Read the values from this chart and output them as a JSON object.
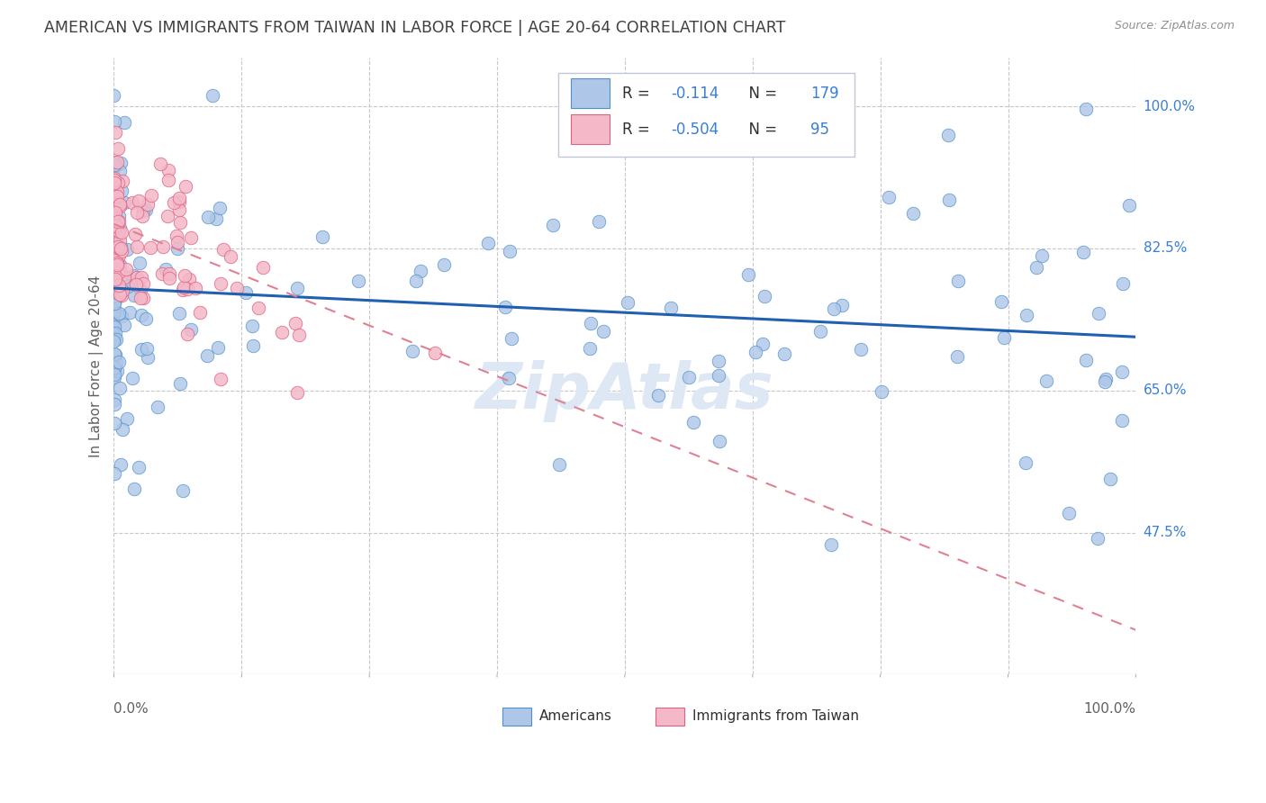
{
  "title": "AMERICAN VS IMMIGRANTS FROM TAIWAN IN LABOR FORCE | AGE 20-64 CORRELATION CHART",
  "source": "Source: ZipAtlas.com",
  "ylabel": "In Labor Force | Age 20-64",
  "xlim": [
    0.0,
    1.0
  ],
  "ylim": [
    0.3,
    1.06
  ],
  "yticks": [
    0.475,
    0.65,
    0.825,
    1.0
  ],
  "ytick_labels": [
    "47.5%",
    "65.0%",
    "82.5%",
    "100.0%"
  ],
  "xticks": [
    0.0,
    0.125,
    0.25,
    0.375,
    0.5,
    0.625,
    0.75,
    0.875,
    1.0
  ],
  "legend_r_blue": "-0.114",
  "legend_n_blue": "179",
  "legend_r_pink": "-0.504",
  "legend_n_pink": "95",
  "blue_dot_color": "#aec6e8",
  "blue_edge_color": "#5090c8",
  "pink_dot_color": "#f4b8c8",
  "pink_edge_color": "#e06080",
  "blue_line_color": "#2060b0",
  "pink_line_color": "#e08090",
  "grid_color": "#c8c8c8",
  "title_color": "#404040",
  "source_color": "#909090",
  "ylabel_color": "#606060",
  "yticklabel_color": "#3a7fd5",
  "xticklabel_color": "#606060",
  "watermark": "ZipAtlas",
  "watermark_color": "#dde8f4",
  "legend_border_color": "#c0c8d8",
  "blue_line_start_y": 0.776,
  "blue_line_end_y": 0.716,
  "pink_line_start_y": 0.855,
  "pink_line_end_y": 0.355,
  "seed_blue": 42,
  "seed_pink": 77
}
